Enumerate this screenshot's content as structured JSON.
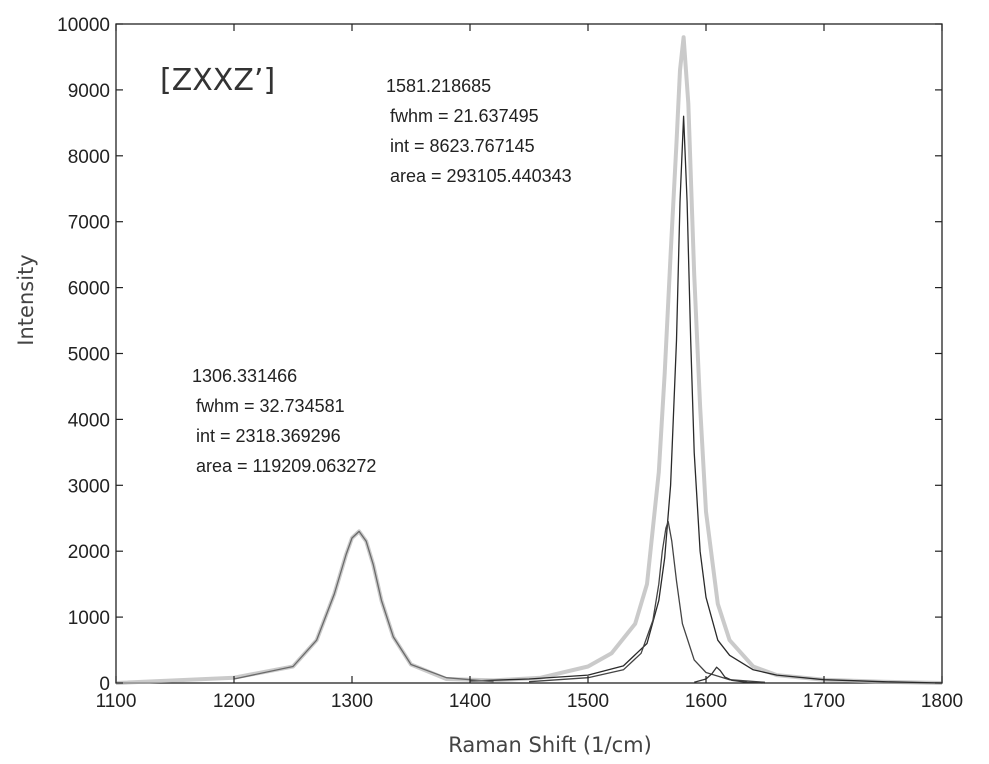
{
  "chart_data": {
    "type": "line",
    "title": "",
    "xlabel": "Raman Shift (1/cm)",
    "ylabel": "Intensity",
    "xlim": [
      1100,
      1800
    ],
    "ylim": [
      0,
      10000
    ],
    "x_ticks": [
      1100,
      1200,
      1300,
      1400,
      1500,
      1600,
      1700,
      1800
    ],
    "y_ticks": [
      0,
      1000,
      2000,
      3000,
      4000,
      5000,
      6000,
      7000,
      8000,
      9000,
      10000
    ],
    "grid": false,
    "polarization_label": "[ZXXZ’]",
    "annotations": [
      {
        "name": "peak-1581",
        "lines": [
          "1581.218685",
          "fwhm = 21.637495",
          "int = 8623.767145",
          "area = 293105.440343"
        ]
      },
      {
        "name": "peak-1306",
        "lines": [
          "1306.331466",
          "fwhm = 32.734581",
          "int = 2318.369296",
          "area = 119209.063272"
        ]
      }
    ],
    "series": [
      {
        "role": "measured spectrum (light gray)",
        "color": "#b4b4b4",
        "x": [
          1100,
          1200,
          1250,
          1270,
          1285,
          1295,
          1300,
          1306,
          1312,
          1318,
          1325,
          1335,
          1350,
          1380,
          1420,
          1460,
          1500,
          1520,
          1540,
          1550,
          1560,
          1565,
          1570,
          1575,
          1578,
          1581,
          1585,
          1590,
          1595,
          1600,
          1610,
          1620,
          1640,
          1660,
          1700,
          1750,
          1800
        ],
        "y": [
          0,
          80,
          250,
          650,
          1350,
          1950,
          2200,
          2300,
          2150,
          1800,
          1250,
          700,
          280,
          60,
          40,
          80,
          250,
          450,
          900,
          1500,
          3200,
          4700,
          6500,
          8200,
          9300,
          9800,
          8800,
          6200,
          4200,
          2600,
          1200,
          650,
          250,
          120,
          50,
          20,
          0
        ]
      },
      {
        "role": "fitted component 1581",
        "color": "#2a2a2a",
        "x": [
          1400,
          1450,
          1500,
          1530,
          1550,
          1560,
          1565,
          1570,
          1575,
          1578,
          1581,
          1584,
          1587,
          1590,
          1595,
          1600,
          1610,
          1620,
          1640,
          1660,
          1700,
          1750,
          1800
        ],
        "y": [
          30,
          60,
          120,
          260,
          600,
          1250,
          1900,
          3000,
          5200,
          7300,
          8600,
          7300,
          5200,
          3500,
          2000,
          1300,
          650,
          420,
          200,
          120,
          50,
          20,
          0
        ]
      },
      {
        "role": "fitted component 1568",
        "color": "#444444",
        "x": [
          1450,
          1500,
          1530,
          1545,
          1555,
          1560,
          1563,
          1566,
          1568,
          1571,
          1575,
          1580,
          1590,
          1600,
          1620,
          1650
        ],
        "y": [
          20,
          80,
          200,
          450,
          950,
          1500,
          2000,
          2350,
          2450,
          2150,
          1550,
          900,
          350,
          160,
          50,
          10
        ]
      },
      {
        "role": "fitted component 1306",
        "color": "#6a6a6a",
        "x": [
          1200,
          1250,
          1270,
          1285,
          1295,
          1300,
          1306,
          1312,
          1318,
          1325,
          1335,
          1350,
          1380,
          1420
        ],
        "y": [
          60,
          250,
          650,
          1350,
          1950,
          2200,
          2300,
          2150,
          1800,
          1250,
          700,
          280,
          80,
          20
        ]
      },
      {
        "role": "fitted component 1610",
        "color": "#333333",
        "x": [
          1590,
          1600,
          1605,
          1609,
          1612,
          1616,
          1622,
          1635,
          1650
        ],
        "y": [
          10,
          60,
          140,
          240,
          190,
          90,
          40,
          10,
          0
        ]
      }
    ]
  }
}
